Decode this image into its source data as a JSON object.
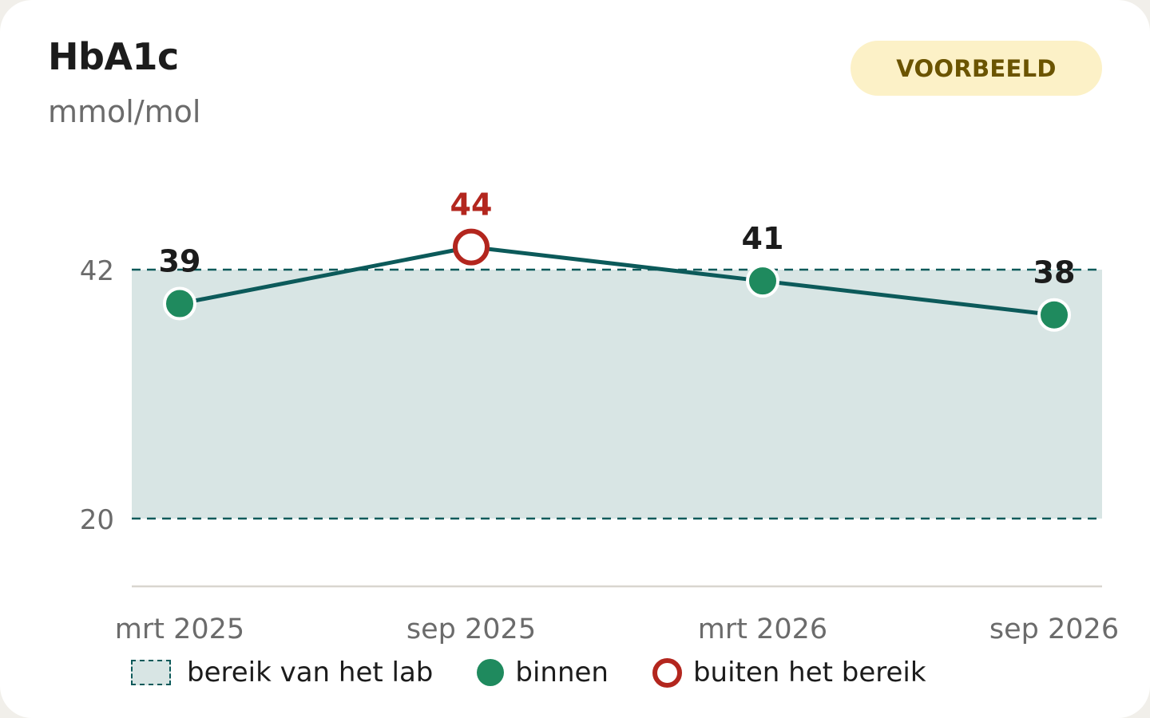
{
  "card": {
    "title": "HbA1c",
    "unit": "mmol/mol",
    "badge": "VOORBEELD"
  },
  "legend": {
    "range": "bereik van het lab",
    "inside": "binnen",
    "outside": "buiten het bereik"
  },
  "colors": {
    "line": "#0c5a5a",
    "band": "#d8e5e4",
    "inside": "#1f8a5e",
    "outside": "#b3261e",
    "label": "#1c1c1c",
    "axis_text": "#6b6b6b"
  },
  "chart_data": {
    "type": "line",
    "title": "HbA1c",
    "ylabel": "mmol/mol",
    "categories": [
      "mrt 2025",
      "sep 2025",
      "mrt 2026",
      "sep 2026"
    ],
    "series": [
      {
        "values": [
          39,
          44,
          41,
          38
        ],
        "status": [
          "binnen",
          "buiten",
          "binnen",
          "binnen"
        ]
      }
    ],
    "reference_range": [
      20,
      42
    ],
    "y_ticks": [
      20,
      42
    ],
    "ylim": [
      14,
      48
    ],
    "grid": false,
    "legend_position": "bottom"
  }
}
